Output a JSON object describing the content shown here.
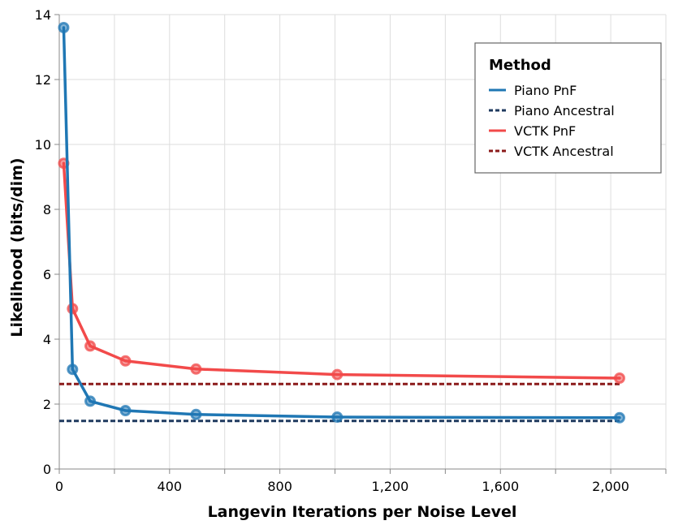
{
  "chart_data": {
    "type": "line",
    "xlabel": "Langevin Iterations per Noise Level",
    "ylabel": "Likelihood (bits/dim)",
    "xlim": [
      0,
      2200
    ],
    "ylim": [
      0,
      14
    ],
    "x_ticks": [
      0,
      400,
      800,
      1200,
      1600,
      2000
    ],
    "x_tick_labels": [
      "0",
      "400",
      "800",
      "1,200",
      "1,600",
      "2,000"
    ],
    "x_grid": [
      0,
      200,
      400,
      600,
      800,
      1000,
      1200,
      1400,
      1600,
      1800,
      2000,
      2200
    ],
    "y_ticks": [
      0,
      2,
      4,
      6,
      8,
      10,
      12,
      14
    ],
    "y_tick_labels": [
      "0",
      "2",
      "4",
      "6",
      "8",
      "10",
      "12",
      "14"
    ],
    "grid": true,
    "legend": {
      "title": "Method",
      "placement": "top-right",
      "entries": [
        "Piano PnF",
        "Piano Ancestral",
        "VCTK PnF",
        "VCTK Ancestral"
      ]
    },
    "series": [
      {
        "name": "Piano PnF",
        "style": "solid",
        "color": "#1f77b4",
        "x": [
          16,
          48,
          112,
          240,
          496,
          1008,
          2032
        ],
        "values": [
          13.6,
          3.07,
          2.09,
          1.8,
          1.68,
          1.6,
          1.58
        ]
      },
      {
        "name": "Piano Ancestral",
        "style": "dashed",
        "color": "#1f3a5f",
        "x": [
          0,
          2032
        ],
        "values": [
          1.48,
          1.48
        ]
      },
      {
        "name": "VCTK PnF",
        "style": "solid",
        "color": "#f24a4a",
        "x": [
          16,
          48,
          112,
          240,
          496,
          1008,
          2032
        ],
        "values": [
          9.42,
          4.94,
          3.79,
          3.33,
          3.08,
          2.91,
          2.8
        ]
      },
      {
        "name": "VCTK Ancestral",
        "style": "dashed",
        "color": "#8b1a1a",
        "x": [
          0,
          2032
        ],
        "values": [
          2.62,
          2.62
        ]
      }
    ]
  }
}
